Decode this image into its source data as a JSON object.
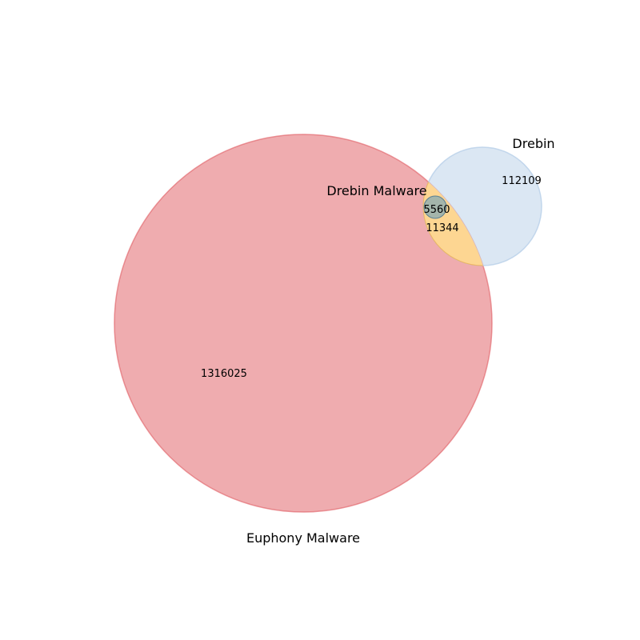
{
  "venn": {
    "sets": {
      "euphony_malware": {
        "label": "Euphony Malware",
        "color": "#e05a60"
      },
      "drebin": {
        "label": "Drebin",
        "color": "#b8cfe8"
      },
      "drebin_malware": {
        "label": "Drebin Malware",
        "color": "#5b9bc0"
      }
    },
    "regions": {
      "euphony_only": "1316025",
      "drebin_only": "112109",
      "euphony_drebin": "11344",
      "all_three": "5560"
    },
    "colors": {
      "euphony_drebin_overlap": "#fdd692"
    }
  }
}
